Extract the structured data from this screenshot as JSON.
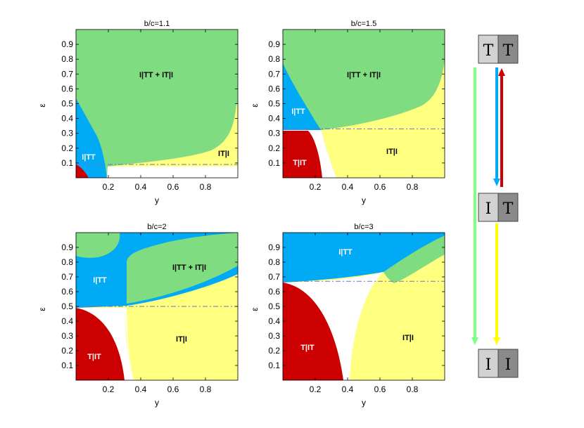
{
  "chart_data": [
    {
      "type": "phase-diagram",
      "title": "b/c=1.1",
      "xlabel": "y",
      "ylabel": "ε",
      "xlim": [
        0,
        1
      ],
      "ylim": [
        0,
        1
      ],
      "xticks": [
        "0.2",
        "0.4",
        "0.6",
        "0.8"
      ],
      "yticks": [
        "0.1",
        "0.2",
        "0.3",
        "0.4",
        "0.5",
        "0.6",
        "0.7",
        "0.8",
        "0.9"
      ],
      "threshold_epsilon": 0.09,
      "regions": [
        {
          "label": "I|TT + IT|I",
          "color": "#80dc80",
          "label_at": [
            0.5,
            0.72
          ]
        },
        {
          "label": "I|TT",
          "color": "#00aaf5",
          "label_at": [
            0.08,
            0.14
          ]
        },
        {
          "label": "IT|I",
          "color": "#ffff80",
          "label_at": [
            0.88,
            0.16
          ]
        },
        {
          "label": "T|IT",
          "color": "#cc0000",
          "label_at": null
        }
      ]
    },
    {
      "type": "phase-diagram",
      "title": "b/c=1.5",
      "xlabel": "y",
      "ylabel": "ε",
      "xlim": [
        0,
        1
      ],
      "ylim": [
        0,
        1
      ],
      "xticks": [
        "0.2",
        "0.4",
        "0.6",
        "0.8"
      ],
      "yticks": [
        "0.1",
        "0.2",
        "0.3",
        "0.4",
        "0.5",
        "0.6",
        "0.7",
        "0.8",
        "0.9"
      ],
      "threshold_epsilon": 0.33,
      "regions": [
        {
          "label": "I|TT + IT|I",
          "color": "#80dc80",
          "label_at": [
            0.5,
            0.72
          ]
        },
        {
          "label": "I|TT",
          "color": "#00aaf5",
          "label_at": [
            0.08,
            0.45
          ]
        },
        {
          "label": "IT|I",
          "color": "#ffff80",
          "label_at": [
            0.62,
            0.2
          ]
        },
        {
          "label": "T|IT",
          "color": "#cc0000",
          "label_at": [
            0.1,
            0.1
          ]
        }
      ]
    },
    {
      "type": "phase-diagram",
      "title": "b/c=2",
      "xlabel": "y",
      "ylabel": "ε",
      "xlim": [
        0,
        1
      ],
      "ylim": [
        0,
        1
      ],
      "xticks": [
        "0.2",
        "0.4",
        "0.6",
        "0.8"
      ],
      "yticks": [
        "0.1",
        "0.2",
        "0.3",
        "0.4",
        "0.5",
        "0.6",
        "0.7",
        "0.8",
        "0.9"
      ],
      "threshold_epsilon": 0.5,
      "regions": [
        {
          "label": "I|TT + IT|I",
          "color": "#80dc80",
          "label_at": [
            0.6,
            0.75
          ]
        },
        {
          "label": "I|TT",
          "color": "#00aaf5",
          "label_at": [
            0.15,
            0.69
          ]
        },
        {
          "label": "IT|I",
          "color": "#ffff80",
          "label_at": [
            0.65,
            0.28
          ]
        },
        {
          "label": "T|IT",
          "color": "#cc0000",
          "label_at": [
            0.12,
            0.16
          ]
        }
      ]
    },
    {
      "type": "phase-diagram",
      "title": "b/c=3",
      "xlabel": "y",
      "ylabel": "ε",
      "xlim": [
        0,
        1
      ],
      "ylim": [
        0,
        1
      ],
      "xticks": [
        "0.2",
        "0.4",
        "0.6",
        "0.8"
      ],
      "yticks": [
        "0.1",
        "0.2",
        "0.3",
        "0.4",
        "0.5",
        "0.6",
        "0.7",
        "0.8",
        "0.9"
      ],
      "threshold_epsilon": 0.67,
      "regions": [
        {
          "label": "I|TT",
          "color": "#00aaf5",
          "label_at": [
            0.38,
            0.88
          ]
        },
        {
          "label": "IT|I",
          "color": "#ffff80",
          "label_at": [
            0.75,
            0.28
          ]
        },
        {
          "label": "T|IT",
          "color": "#cc0000",
          "label_at": [
            0.15,
            0.2
          ]
        },
        {
          "label": "I|TT + IT|I",
          "color": "#80dc80",
          "label_at": null
        }
      ]
    }
  ],
  "transition_diagram": {
    "states": [
      {
        "id": "TT",
        "left": "T",
        "right": "T"
      },
      {
        "id": "IT",
        "left": "I",
        "right": "T"
      },
      {
        "id": "II",
        "left": "I",
        "right": "I"
      }
    ],
    "cell_colors": {
      "light": "#d2d2d2",
      "dark": "#8a8a8a"
    },
    "arrows": [
      {
        "from": "TT",
        "to": "II",
        "color": "#80ff80"
      },
      {
        "from": "TT",
        "to": "IT",
        "color": "#00aaf5"
      },
      {
        "from": "IT",
        "to": "TT",
        "color": "#cc0000"
      },
      {
        "from": "IT",
        "to": "II",
        "color": "#ffff00"
      }
    ]
  }
}
